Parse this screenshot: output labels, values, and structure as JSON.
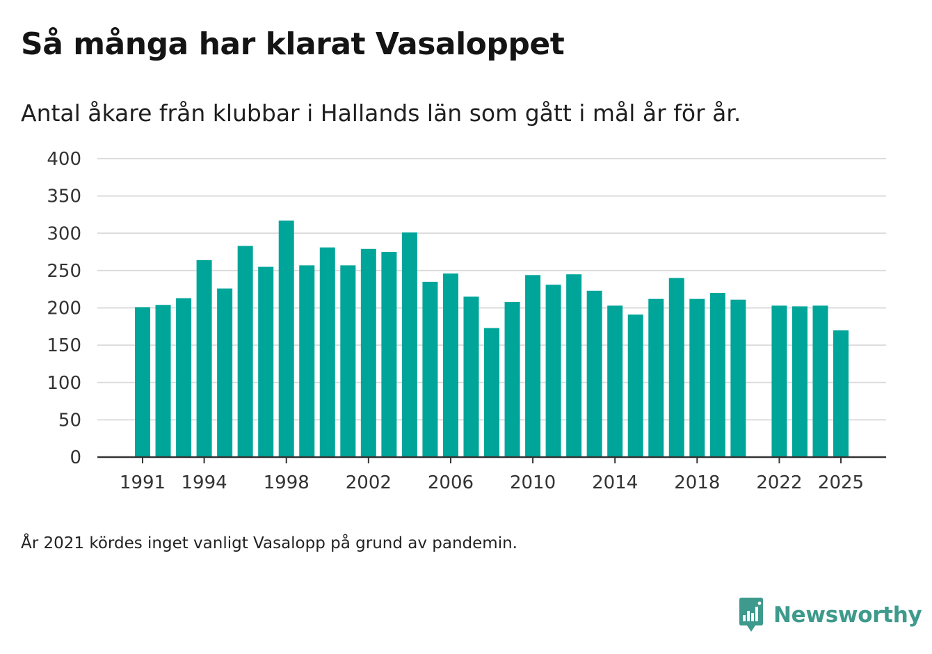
{
  "header": {
    "title": "Så många har klarat Vasaloppet",
    "subtitle": "Antal åkare från klubbar i Hallands län som gått i mål år för år."
  },
  "footnote": "År 2021 kördes inget vanligt Vasalopp på grund av pandemin.",
  "brand": {
    "name": "Newsworthy",
    "icon": "bar-chart-speech-bubble-icon",
    "color": "#3e9a8c"
  },
  "colors": {
    "bar": "#00a59a",
    "grid": "#dcdcdc",
    "axis": "#333333",
    "text": "#333333"
  },
  "chart_data": {
    "type": "bar",
    "title": "Så många har klarat Vasaloppet",
    "subtitle": "Antal åkare från klubbar i Hallands län som gått i mål år för år.",
    "xlabel": "",
    "ylabel": "",
    "ylim": [
      0,
      400
    ],
    "yticks": [
      0,
      50,
      100,
      150,
      200,
      250,
      300,
      350,
      400
    ],
    "xticks": [
      "1991",
      "1994",
      "1998",
      "2002",
      "2006",
      "2010",
      "2014",
      "2018",
      "2022",
      "2025"
    ],
    "grid": true,
    "legend": "none",
    "categories": [
      "1991",
      "1992",
      "1993",
      "1994",
      "1995",
      "1996",
      "1997",
      "1998",
      "1999",
      "2000",
      "2001",
      "2002",
      "2003",
      "2004",
      "2005",
      "2006",
      "2007",
      "2008",
      "2009",
      "2010",
      "2011",
      "2012",
      "2013",
      "2014",
      "2015",
      "2016",
      "2017",
      "2018",
      "2019",
      "2020",
      "2021",
      "2022",
      "2023",
      "2024",
      "2025"
    ],
    "values": [
      201,
      204,
      213,
      264,
      226,
      283,
      255,
      317,
      257,
      281,
      257,
      279,
      275,
      301,
      235,
      246,
      215,
      173,
      208,
      244,
      231,
      245,
      223,
      203,
      191,
      212,
      240,
      212,
      220,
      211,
      null,
      203,
      202,
      203,
      170
    ]
  }
}
